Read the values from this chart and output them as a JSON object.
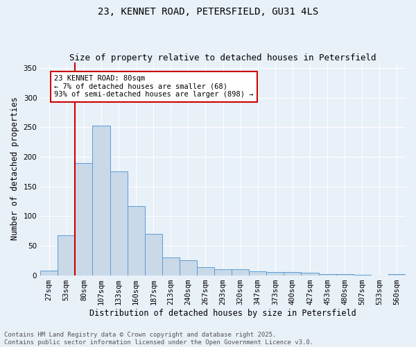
{
  "title_line1": "23, KENNET ROAD, PETERSFIELD, GU31 4LS",
  "title_line2": "Size of property relative to detached houses in Petersfield",
  "xlabel": "Distribution of detached houses by size in Petersfield",
  "ylabel": "Number of detached properties",
  "bar_labels": [
    "27sqm",
    "53sqm",
    "80sqm",
    "107sqm",
    "133sqm",
    "160sqm",
    "187sqm",
    "213sqm",
    "240sqm",
    "267sqm",
    "293sqm",
    "320sqm",
    "347sqm",
    "373sqm",
    "400sqm",
    "427sqm",
    "453sqm",
    "480sqm",
    "507sqm",
    "533sqm",
    "560sqm"
  ],
  "bar_values": [
    8,
    67,
    190,
    253,
    175,
    117,
    70,
    30,
    25,
    13,
    10,
    10,
    6,
    5,
    5,
    4,
    2,
    2,
    1,
    0,
    2
  ],
  "bar_color": "#c9d9e8",
  "bar_edgecolor": "#5b9bd5",
  "vline_color": "#cc0000",
  "annotation_text": "23 KENNET ROAD: 80sqm\n← 7% of detached houses are smaller (68)\n93% of semi-detached houses are larger (898) →",
  "annotation_box_color": "#ffffff",
  "annotation_box_edgecolor": "#cc0000",
  "ylim": [
    0,
    360
  ],
  "yticks": [
    0,
    50,
    100,
    150,
    200,
    250,
    300,
    350
  ],
  "background_color": "#e8f0f8",
  "grid_color": "#ffffff",
  "footer_text": "Contains HM Land Registry data © Crown copyright and database right 2025.\nContains public sector information licensed under the Open Government Licence v3.0.",
  "title_fontsize": 10,
  "subtitle_fontsize": 9,
  "axis_label_fontsize": 8.5,
  "tick_fontsize": 7.5,
  "annotation_fontsize": 7.5,
  "footer_fontsize": 6.5
}
